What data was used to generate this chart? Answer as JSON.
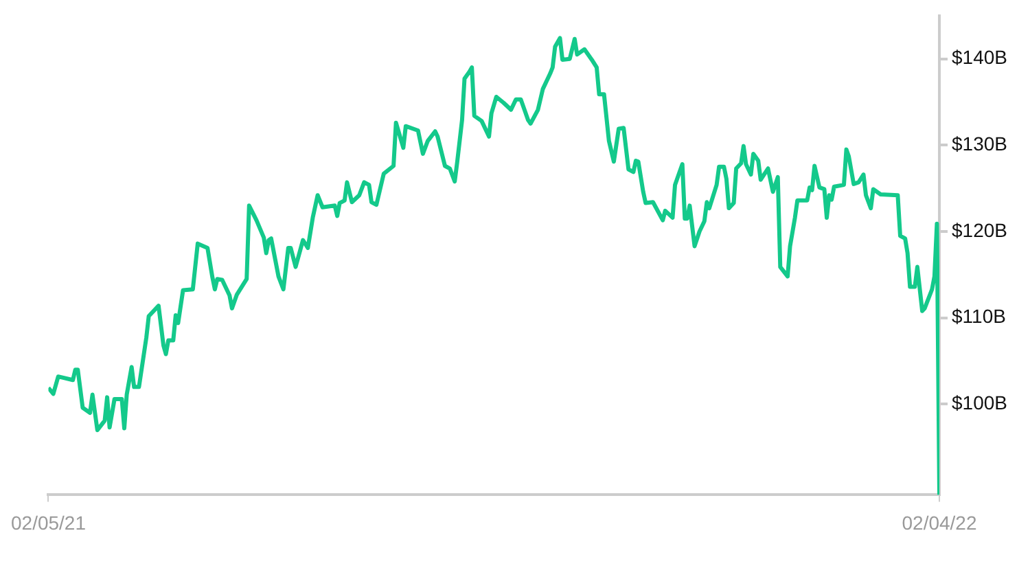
{
  "chart_data": {
    "type": "line",
    "marker": "none",
    "grid": false,
    "legend": false,
    "x": [
      "2021-02-05",
      "2021-02-07",
      "2021-02-09",
      "2021-02-15",
      "2021-02-16",
      "2021-02-17",
      "2021-02-19",
      "2021-02-22",
      "2021-02-23",
      "2021-02-25",
      "2021-02-28",
      "2021-03-01",
      "2021-03-02",
      "2021-03-04",
      "2021-03-07",
      "2021-03-08",
      "2021-03-09",
      "2021-03-11",
      "2021-03-12",
      "2021-03-14",
      "2021-03-17",
      "2021-03-18",
      "2021-03-22",
      "2021-03-24",
      "2021-03-25",
      "2021-03-26",
      "2021-03-28",
      "2021-03-29",
      "2021-03-30",
      "2021-04-01",
      "2021-04-05",
      "2021-04-07",
      "2021-04-11",
      "2021-04-13",
      "2021-04-14",
      "2021-04-15",
      "2021-04-17",
      "2021-04-20",
      "2021-04-21",
      "2021-04-23",
      "2021-04-27",
      "2021-04-28",
      "2021-05-01",
      "2021-05-04",
      "2021-05-05",
      "2021-05-06",
      "2021-05-07",
      "2021-05-10",
      "2021-05-12",
      "2021-05-14",
      "2021-05-15",
      "2021-05-17",
      "2021-05-20",
      "2021-05-22",
      "2021-05-24",
      "2021-05-26",
      "2021-05-28",
      "2021-06-02",
      "2021-06-03",
      "2021-06-04",
      "2021-06-06",
      "2021-06-07",
      "2021-06-09",
      "2021-06-12",
      "2021-06-14",
      "2021-06-16",
      "2021-06-17",
      "2021-06-19",
      "2021-06-22",
      "2021-06-26",
      "2021-06-27",
      "2021-06-30",
      "2021-07-01",
      "2021-07-06",
      "2021-07-08",
      "2021-07-10",
      "2021-07-13",
      "2021-07-14",
      "2021-07-17",
      "2021-07-19",
      "2021-07-21",
      "2021-07-22",
      "2021-07-24",
      "2021-07-25",
      "2021-07-27",
      "2021-07-28",
      "2021-07-29",
      "2021-08-01",
      "2021-08-04",
      "2021-08-05",
      "2021-08-07",
      "2021-08-10",
      "2021-08-13",
      "2021-08-15",
      "2021-08-17",
      "2021-08-20",
      "2021-08-21",
      "2021-08-24",
      "2021-08-26",
      "2021-08-29",
      "2021-08-30",
      "2021-08-31",
      "2021-09-02",
      "2021-09-03",
      "2021-09-06",
      "2021-09-08",
      "2021-09-09",
      "2021-09-12",
      "2021-09-15",
      "2021-09-17",
      "2021-09-18",
      "2021-09-20",
      "2021-09-22",
      "2021-09-24",
      "2021-09-26",
      "2021-09-28",
      "2021-09-30",
      "2021-10-02",
      "2021-10-03",
      "2021-10-04",
      "2021-10-06",
      "2021-10-07",
      "2021-10-10",
      "2021-10-14",
      "2021-10-15",
      "2021-10-18",
      "2021-10-19",
      "2021-10-22",
      "2021-10-23",
      "2021-10-24",
      "2021-10-25",
      "2021-10-27",
      "2021-10-29",
      "2021-10-31",
      "2021-11-01",
      "2021-11-02",
      "2021-11-05",
      "2021-11-06",
      "2021-11-08",
      "2021-11-09",
      "2021-11-10",
      "2021-11-12",
      "2021-11-13",
      "2021-11-15",
      "2021-11-16",
      "2021-11-17",
      "2021-11-19",
      "2021-11-20",
      "2021-11-22",
      "2021-11-23",
      "2021-11-26",
      "2021-11-28",
      "2021-11-30",
      "2021-12-01",
      "2021-12-04",
      "2021-12-05",
      "2021-12-07",
      "2021-12-08",
      "2021-12-12",
      "2021-12-13",
      "2021-12-14",
      "2021-12-15",
      "2021-12-17",
      "2021-12-19",
      "2021-12-20",
      "2021-12-21",
      "2021-12-22",
      "2021-12-23",
      "2021-12-27",
      "2021-12-28",
      "2021-12-29",
      "2021-12-31",
      "2022-01-02",
      "2022-01-04",
      "2022-01-05",
      "2022-01-07",
      "2022-01-08",
      "2022-01-11",
      "2022-01-18",
      "2022-01-19",
      "2022-01-21",
      "2022-01-22",
      "2022-01-23",
      "2022-01-25",
      "2022-01-26",
      "2022-01-28",
      "2022-01-29",
      "2022-02-01",
      "2022-02-02",
      "2022-02-03",
      "2022-02-04"
    ],
    "series": [
      {
        "color": "#14c98b",
        "values": [
          101.9,
          101.2,
          103.2,
          102.8,
          104.0,
          104.0,
          99.6,
          99.0,
          101.1,
          97.0,
          98.1,
          100.8,
          97.3,
          100.6,
          100.6,
          97.2,
          101.1,
          104.3,
          102.0,
          102.0,
          107.7,
          110.2,
          111.4,
          106.8,
          105.8,
          107.4,
          107.4,
          110.3,
          109.4,
          113.2,
          113.3,
          118.6,
          118.1,
          114.7,
          113.3,
          114.5,
          114.4,
          112.6,
          111.1,
          112.7,
          114.5,
          123.0,
          121.3,
          119.3,
          117.5,
          119.0,
          119.2,
          114.8,
          113.3,
          118.1,
          118.1,
          115.9,
          119.0,
          118.1,
          121.6,
          124.2,
          122.8,
          123.0,
          121.8,
          123.3,
          123.6,
          125.7,
          123.4,
          124.2,
          125.7,
          125.4,
          123.4,
          123.1,
          126.7,
          127.6,
          132.6,
          129.7,
          132.2,
          131.7,
          129.0,
          130.5,
          131.6,
          131.0,
          127.6,
          127.3,
          125.8,
          128.0,
          132.9,
          137.7,
          138.5,
          139.0,
          133.4,
          132.8,
          131.0,
          133.7,
          135.6,
          134.9,
          134.1,
          135.3,
          135.3,
          132.9,
          132.5,
          134.1,
          136.5,
          138.3,
          139.0,
          141.4,
          142.4,
          139.9,
          140.0,
          142.3,
          140.5,
          141.1,
          139.9,
          139.0,
          135.9,
          135.9,
          130.5,
          128.1,
          131.9,
          132.0,
          127.2,
          126.9,
          128.2,
          128.1,
          124.6,
          123.3,
          123.4,
          121.3,
          122.4,
          121.6,
          125.4,
          127.8,
          121.5,
          121.5,
          123.0,
          118.3,
          120.0,
          121.2,
          123.4,
          122.7,
          125.4,
          127.5,
          127.5,
          126.1,
          122.7,
          123.3,
          127.3,
          127.9,
          129.9,
          127.8,
          126.6,
          129.0,
          128.2,
          126.0,
          127.3,
          124.6,
          126.3,
          115.9,
          114.8,
          118.3,
          121.6,
          123.6,
          123.6,
          125.1,
          124.8,
          127.6,
          125.1,
          124.9,
          121.6,
          124.2,
          123.7,
          125.2,
          125.4,
          129.5,
          128.7,
          125.5,
          125.7,
          126.6,
          124.2,
          122.7,
          124.9,
          124.3,
          124.2,
          119.5,
          119.2,
          117.5,
          113.6,
          113.6,
          115.9,
          110.8,
          111.1,
          113.3,
          114.8,
          120.9,
          89.5
        ]
      }
    ],
    "xlim": [
      "2021-02-05",
      "2022-02-04"
    ],
    "xticks": [
      {
        "value": "2021-02-05",
        "label": "02/05/21"
      },
      {
        "value": "2022-02-04",
        "label": "02/04/22"
      }
    ],
    "ylim": [
      89.5,
      145
    ],
    "yticks": [
      {
        "value": 100,
        "label": "$100B"
      },
      {
        "value": 110,
        "label": "$110B"
      },
      {
        "value": 120,
        "label": "$120B"
      },
      {
        "value": 130,
        "label": "$130B"
      },
      {
        "value": 140,
        "label": "$140B"
      }
    ]
  }
}
